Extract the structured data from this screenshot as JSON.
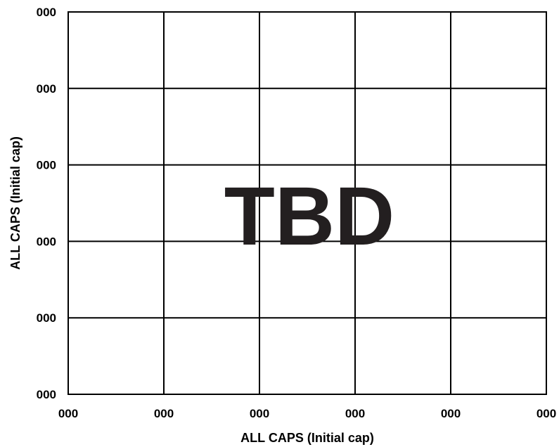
{
  "chart_data": {
    "type": "line",
    "title": "",
    "xlabel": "ALL CAPS (Initial cap)",
    "ylabel": "ALL CAPS (Initial cap)",
    "x_tick_labels": [
      "000",
      "000",
      "000",
      "000",
      "000",
      "000"
    ],
    "y_tick_labels": [
      "000",
      "000",
      "000",
      "000",
      "000",
      "000"
    ],
    "grid": true,
    "series": [],
    "annotation": "TBD",
    "colors": {
      "grid": "#000000",
      "annotation": "#231f20"
    }
  }
}
